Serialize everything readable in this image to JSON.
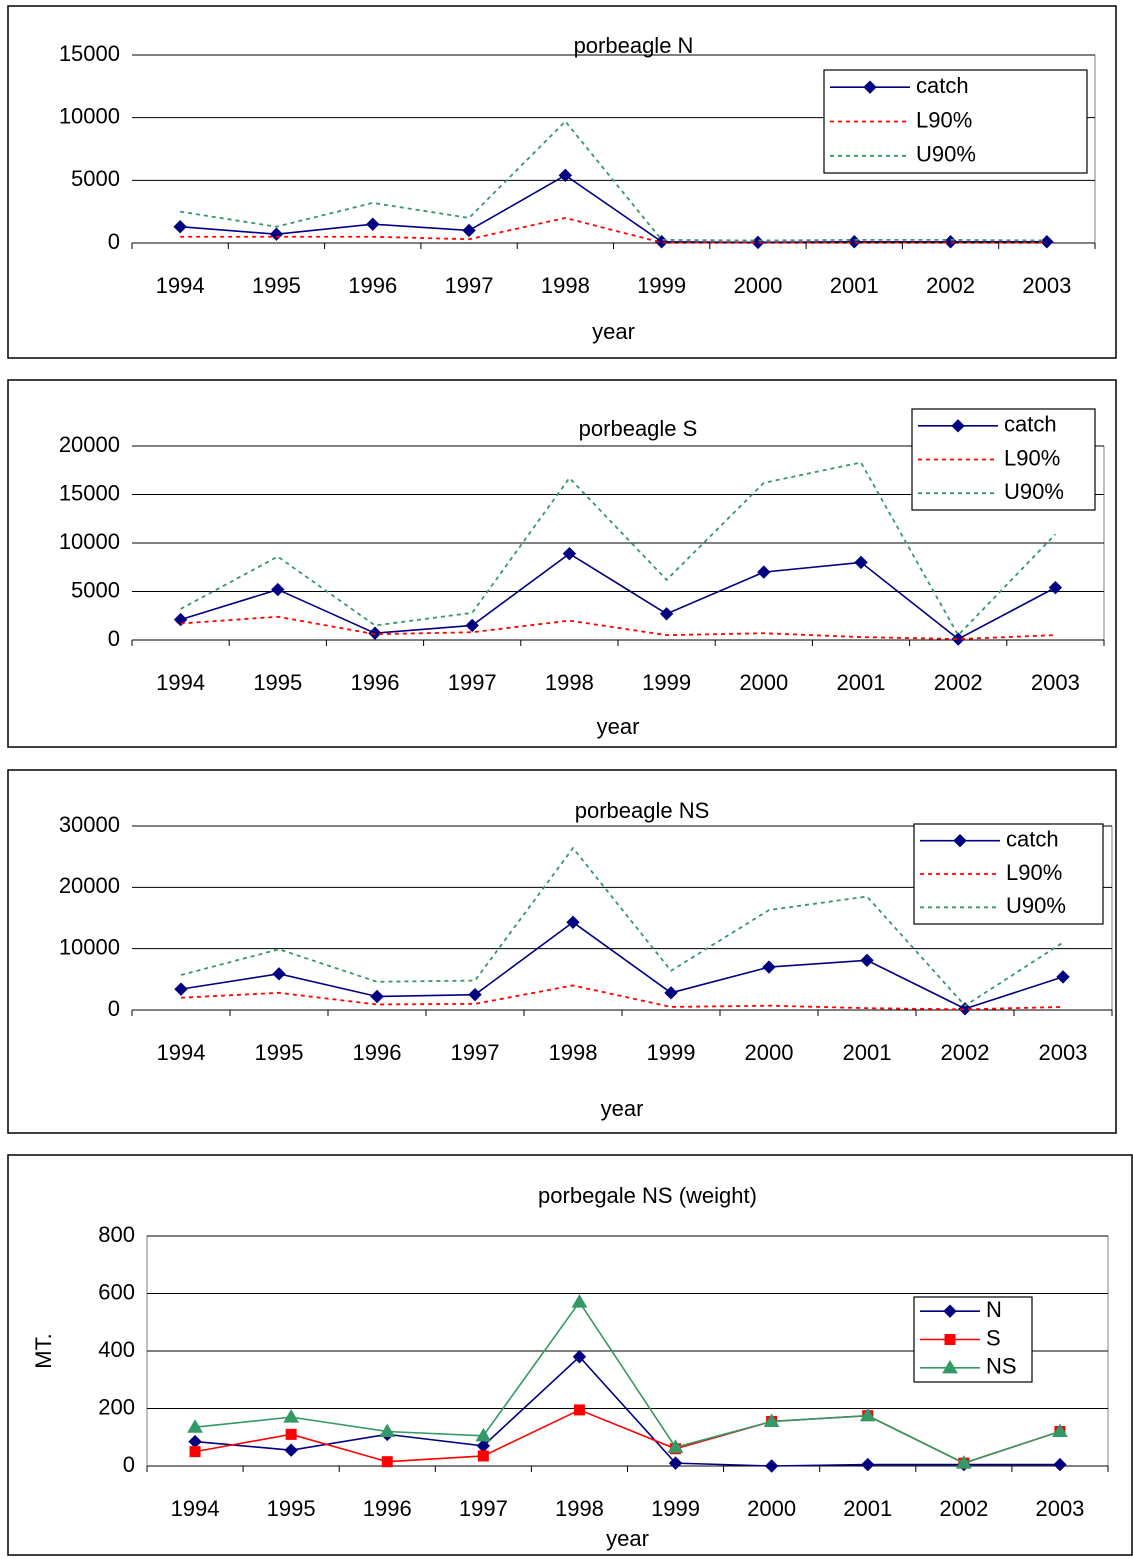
{
  "chart_data": [
    {
      "type": "line",
      "title": "porbeagle N",
      "xlabel": "year",
      "categories": [
        "1994",
        "1995",
        "1996",
        "1997",
        "1998",
        "1999",
        "2000",
        "2001",
        "2002",
        "2003"
      ],
      "series": [
        {
          "name": "catch",
          "color": "#000080",
          "dash": false,
          "marker": "diamond",
          "values": [
            1300,
            700,
            1500,
            1000,
            5400,
            100,
            50,
            100,
            100,
            100
          ]
        },
        {
          "name": "L90%",
          "color": "#ff0000",
          "dash": true,
          "marker": "none",
          "values": [
            500,
            500,
            500,
            300,
            2000,
            30,
            30,
            30,
            30,
            30
          ]
        },
        {
          "name": "U90%",
          "color": "#339966",
          "dash": true,
          "marker": "none",
          "values": [
            2500,
            1300,
            3200,
            2000,
            9700,
            250,
            200,
            250,
            250,
            200
          ]
        }
      ],
      "ylim": [
        0,
        15000
      ],
      "yticks": [
        0,
        5000,
        10000,
        15000
      ],
      "grid": true,
      "legend": "upper right"
    },
    {
      "type": "line",
      "title": "porbeagle S",
      "xlabel": "year",
      "categories": [
        "1994",
        "1995",
        "1996",
        "1997",
        "1998",
        "1999",
        "2000",
        "2001",
        "2002",
        "2003"
      ],
      "series": [
        {
          "name": "catch",
          "color": "#000080",
          "dash": false,
          "marker": "diamond",
          "values": [
            2100,
            5200,
            700,
            1500,
            8900,
            2700,
            7000,
            8000,
            100,
            5400
          ]
        },
        {
          "name": "L90%",
          "color": "#ff0000",
          "dash": true,
          "marker": "none",
          "values": [
            1700,
            2400,
            600,
            800,
            2000,
            500,
            700,
            300,
            100,
            500
          ]
        },
        {
          "name": "U90%",
          "color": "#339966",
          "dash": true,
          "marker": "none",
          "values": [
            3200,
            8600,
            1500,
            2800,
            16700,
            6200,
            16200,
            18300,
            500,
            10900
          ]
        }
      ],
      "ylim": [
        0,
        20000
      ],
      "yticks": [
        0,
        5000,
        10000,
        15000,
        20000
      ],
      "grid": true,
      "legend": "upper right"
    },
    {
      "type": "line",
      "title": "porbeagle NS",
      "xlabel": "year",
      "categories": [
        "1994",
        "1995",
        "1996",
        "1997",
        "1998",
        "1999",
        "2000",
        "2001",
        "2002",
        "2003"
      ],
      "series": [
        {
          "name": "catch",
          "color": "#000080",
          "dash": false,
          "marker": "diamond",
          "values": [
            3400,
            5900,
            2200,
            2500,
            14300,
            2800,
            7000,
            8100,
            200,
            5400
          ]
        },
        {
          "name": "L90%",
          "color": "#ff0000",
          "dash": true,
          "marker": "none",
          "values": [
            2000,
            2800,
            900,
            1000,
            4000,
            500,
            700,
            300,
            100,
            500
          ]
        },
        {
          "name": "U90%",
          "color": "#339966",
          "dash": true,
          "marker": "none",
          "values": [
            5700,
            9900,
            4600,
            4800,
            26400,
            6400,
            16300,
            18500,
            700,
            11000
          ]
        }
      ],
      "ylim": [
        0,
        30000
      ],
      "yticks": [
        0,
        10000,
        20000,
        30000
      ],
      "grid": true,
      "legend": "upper right"
    },
    {
      "type": "line",
      "title": "porbegale NS (weight)",
      "xlabel": "year",
      "ylabel": "MT.",
      "categories": [
        "1994",
        "1995",
        "1996",
        "1997",
        "1998",
        "1999",
        "2000",
        "2001",
        "2002",
        "2003"
      ],
      "series": [
        {
          "name": "N",
          "color": "#000080",
          "dash": false,
          "marker": "diamond",
          "values": [
            85,
            55,
            110,
            70,
            380,
            10,
            0,
            5,
            5,
            5
          ]
        },
        {
          "name": "S",
          "color": "#ff0000",
          "dash": false,
          "marker": "square",
          "values": [
            50,
            110,
            15,
            35,
            195,
            60,
            155,
            175,
            10,
            120
          ]
        },
        {
          "name": "NS",
          "color": "#339966",
          "dash": false,
          "marker": "triangle",
          "values": [
            135,
            170,
            120,
            105,
            570,
            65,
            155,
            175,
            10,
            120
          ]
        }
      ],
      "ylim": [
        0,
        800
      ],
      "yticks": [
        0,
        200,
        400,
        600,
        800
      ],
      "grid": true,
      "legend": "upper right"
    }
  ]
}
